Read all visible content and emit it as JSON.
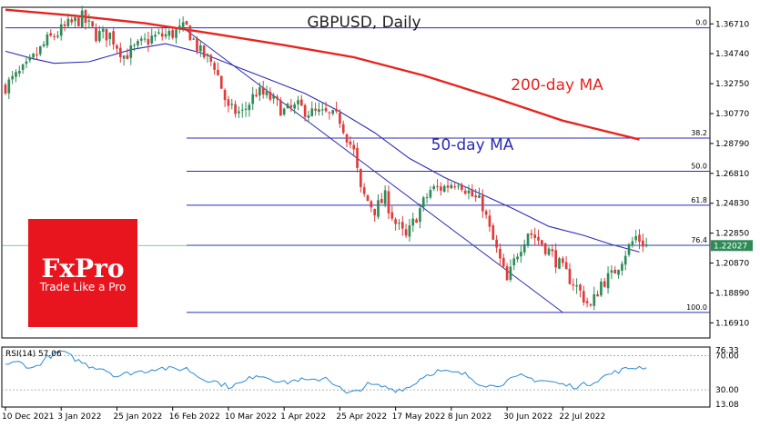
{
  "chart_data": {
    "type": "candlestick",
    "title": "GBPUSD, Daily",
    "price_ylim": [
      1.1591,
      1.3781
    ],
    "rsi_ylim": [
      10,
      80
    ],
    "n_bars": 185,
    "y_ticks": [
      "1.36710",
      "1.34740",
      "1.32750",
      "1.30770",
      "1.28790",
      "1.26810",
      "1.24830",
      "1.22850",
      "1.20870",
      "1.18890",
      "1.16910"
    ],
    "x_ticks": [
      {
        "label": "10 Dec 2021",
        "bar": 0
      },
      {
        "label": "3 Jan 2022",
        "bar": 16
      },
      {
        "label": "25 Jan 2022",
        "bar": 32
      },
      {
        "label": "16 Feb 2022",
        "bar": 48
      },
      {
        "label": "10 Mar 2022",
        "bar": 64
      },
      {
        "label": "1 Apr 2022",
        "bar": 80
      },
      {
        "label": "25 Apr 2022",
        "bar": 96
      },
      {
        "label": "17 May 2022",
        "bar": 112
      },
      {
        "label": "8 Jun 2022",
        "bar": 128
      },
      {
        "label": "30 Jun 2022",
        "bar": 144
      },
      {
        "label": "22 Jul 2022",
        "bar": 160
      }
    ],
    "current_price": "1.22027",
    "current_price_value": 1.2203,
    "colors": {
      "up": "#2e8b57",
      "down": "#e03a3a",
      "ma200": "#e8231e",
      "ma50": "#2b2bb5",
      "fib": "#2b2bb5",
      "rsi": "#2a8ad4",
      "current": "#2e8b57"
    },
    "ma200_label": "200-day MA",
    "ma50_label": "50-day MA",
    "fib_levels": [
      {
        "label": "0.0",
        "value": 1.3645,
        "start_bar": 0
      },
      {
        "label": "38.2",
        "value": 1.2915,
        "start_bar": 52
      },
      {
        "label": "50.0",
        "value": 1.2695,
        "start_bar": 52
      },
      {
        "label": "61.8",
        "value": 1.247,
        "start_bar": 52
      },
      {
        "label": "76.4",
        "value": 1.2205,
        "start_bar": 52
      },
      {
        "label": "100.0",
        "value": 1.176,
        "start_bar": 52
      }
    ],
    "trendline": {
      "from_bar": 51,
      "from_value": 1.3645,
      "to_bar": 160,
      "to_value": 1.176
    },
    "ma200": [
      [
        0,
        1.3765
      ],
      [
        20,
        1.3725
      ],
      [
        40,
        1.3675
      ],
      [
        60,
        1.3605
      ],
      [
        80,
        1.353
      ],
      [
        100,
        1.345
      ],
      [
        120,
        1.333
      ],
      [
        140,
        1.3185
      ],
      [
        160,
        1.303
      ],
      [
        182,
        1.2905
      ]
    ],
    "ma50": [
      [
        0,
        1.349
      ],
      [
        8,
        1.344
      ],
      [
        14,
        1.341
      ],
      [
        24,
        1.342
      ],
      [
        36,
        1.35
      ],
      [
        46,
        1.354
      ],
      [
        56,
        1.348
      ],
      [
        66,
        1.339
      ],
      [
        76,
        1.33
      ],
      [
        86,
        1.321
      ],
      [
        96,
        1.309
      ],
      [
        106,
        1.295
      ],
      [
        116,
        1.278
      ],
      [
        126,
        1.2655
      ],
      [
        136,
        1.255
      ],
      [
        146,
        1.2445
      ],
      [
        156,
        1.233
      ],
      [
        166,
        1.227
      ],
      [
        174,
        1.221
      ],
      [
        182,
        1.216
      ]
    ],
    "price_path": [
      [
        0,
        1.326
      ],
      [
        6,
        1.338
      ],
      [
        12,
        1.356
      ],
      [
        18,
        1.366
      ],
      [
        22,
        1.371
      ],
      [
        26,
        1.36
      ],
      [
        30,
        1.36
      ],
      [
        34,
        1.346
      ],
      [
        38,
        1.352
      ],
      [
        42,
        1.358
      ],
      [
        47,
        1.36
      ],
      [
        52,
        1.3645
      ],
      [
        56,
        1.348
      ],
      [
        60,
        1.34
      ],
      [
        64,
        1.31
      ],
      [
        68,
        1.308
      ],
      [
        72,
        1.322
      ],
      [
        76,
        1.318
      ],
      [
        80,
        1.309
      ],
      [
        84,
        1.312
      ],
      [
        88,
        1.308
      ],
      [
        92,
        1.307
      ],
      [
        96,
        1.304
      ],
      [
        100,
        1.282
      ],
      [
        102,
        1.256
      ],
      [
        106,
        1.244
      ],
      [
        109,
        1.252
      ],
      [
        112,
        1.235
      ],
      [
        115,
        1.225
      ],
      [
        118,
        1.24
      ],
      [
        122,
        1.257
      ],
      [
        126,
        1.259
      ],
      [
        130,
        1.264
      ],
      [
        134,
        1.253
      ],
      [
        137,
        1.247
      ],
      [
        139,
        1.23
      ],
      [
        142,
        1.21
      ],
      [
        144,
        1.196
      ],
      [
        147,
        1.216
      ],
      [
        150,
        1.23
      ],
      [
        154,
        1.222
      ],
      [
        157,
        1.214
      ],
      [
        160,
        1.204
      ],
      [
        163,
        1.196
      ],
      [
        166,
        1.186
      ],
      [
        168,
        1.179
      ],
      [
        171,
        1.196
      ],
      [
        174,
        1.2
      ],
      [
        178,
        1.216
      ],
      [
        181,
        1.226
      ],
      [
        184,
        1.2203
      ]
    ],
    "rsi_label": "RSI(14) 57.06",
    "rsi_ticks": [
      {
        "label": "76.33",
        "value": 76.33
      },
      {
        "label": "70.00",
        "value": 70
      },
      {
        "label": "30.00",
        "value": 30
      },
      {
        "label": "13.08",
        "value": 13.08
      }
    ],
    "rsi": [
      [
        0,
        60
      ],
      [
        4,
        62
      ],
      [
        8,
        55
      ],
      [
        12,
        68
      ],
      [
        16,
        75
      ],
      [
        20,
        66
      ],
      [
        24,
        58
      ],
      [
        28,
        55
      ],
      [
        32,
        46
      ],
      [
        36,
        50
      ],
      [
        40,
        52
      ],
      [
        44,
        56
      ],
      [
        48,
        54
      ],
      [
        52,
        55
      ],
      [
        56,
        44
      ],
      [
        60,
        40
      ],
      [
        64,
        34
      ],
      [
        68,
        38
      ],
      [
        72,
        48
      ],
      [
        76,
        44
      ],
      [
        80,
        38
      ],
      [
        84,
        42
      ],
      [
        88,
        40
      ],
      [
        92,
        45
      ],
      [
        96,
        32
      ],
      [
        98,
        25
      ],
      [
        100,
        27
      ],
      [
        104,
        36
      ],
      [
        108,
        34
      ],
      [
        112,
        30
      ],
      [
        116,
        33
      ],
      [
        120,
        46
      ],
      [
        124,
        52
      ],
      [
        128,
        50
      ],
      [
        132,
        48
      ],
      [
        136,
        38
      ],
      [
        140,
        34
      ],
      [
        144,
        40
      ],
      [
        148,
        46
      ],
      [
        152,
        42
      ],
      [
        156,
        40
      ],
      [
        160,
        36
      ],
      [
        164,
        34
      ],
      [
        168,
        38
      ],
      [
        172,
        46
      ],
      [
        176,
        52
      ],
      [
        180,
        56
      ],
      [
        184,
        57
      ]
    ]
  },
  "logo": {
    "brand": "FxPro",
    "tagline": "Trade Like a Pro"
  }
}
